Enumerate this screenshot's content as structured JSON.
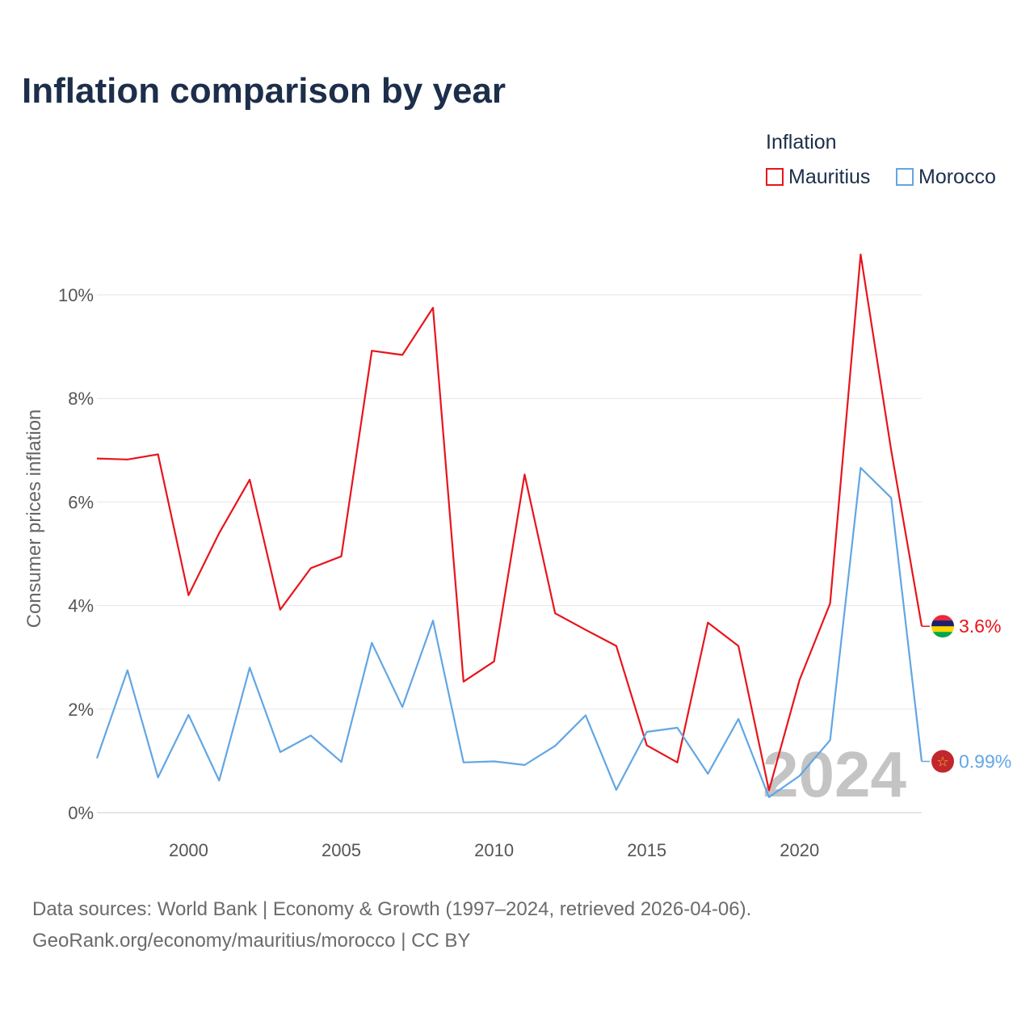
{
  "chart_data": {
    "type": "line",
    "title": "Inflation comparison by year",
    "xlabel": "",
    "ylabel": "Consumer prices inflation",
    "xlim": [
      1997,
      2024
    ],
    "ylim": [
      0,
      10.8
    ],
    "y_ticks": [
      0,
      2,
      4,
      6,
      8,
      10
    ],
    "y_tick_labels": [
      "0%",
      "2%",
      "4%",
      "6%",
      "8%",
      "10%"
    ],
    "x_ticks": [
      2000,
      2005,
      2010,
      2015,
      2020
    ],
    "x_tick_labels": [
      "2000",
      "2005",
      "2010",
      "2015",
      "2020"
    ],
    "grid": true,
    "legend_title": "Inflation",
    "legend_position": "top-right",
    "current_year_label": "2024",
    "x": [
      1997,
      1998,
      1999,
      2000,
      2001,
      2002,
      2003,
      2004,
      2005,
      2006,
      2007,
      2008,
      2009,
      2010,
      2011,
      2012,
      2013,
      2014,
      2015,
      2016,
      2017,
      2018,
      2019,
      2020,
      2021,
      2022,
      2023,
      2024
    ],
    "series": [
      {
        "name": "Mauritius",
        "color": "#e8141c",
        "end_label": "3.6%",
        "flag": "mauritius-flag",
        "values": [
          6.84,
          6.82,
          6.92,
          4.2,
          5.4,
          6.43,
          3.92,
          4.72,
          4.95,
          8.92,
          8.84,
          9.75,
          2.53,
          2.92,
          6.53,
          3.85,
          3.53,
          3.22,
          1.3,
          0.97,
          3.67,
          3.22,
          0.43,
          2.56,
          4.04,
          10.78,
          7.0,
          3.6
        ]
      },
      {
        "name": "Morocco",
        "color": "#62a6e4",
        "end_label": "0.99%",
        "flag": "morocco-flag",
        "values": [
          1.05,
          2.75,
          0.68,
          1.89,
          0.62,
          2.8,
          1.17,
          1.49,
          0.98,
          3.28,
          2.04,
          3.71,
          0.97,
          0.99,
          0.92,
          1.29,
          1.88,
          0.44,
          1.56,
          1.64,
          0.75,
          1.81,
          0.3,
          0.71,
          1.4,
          6.66,
          6.08,
          0.99
        ]
      }
    ]
  },
  "footer": {
    "sources_line": "Data sources: World Bank | Economy & Growth (1997–2024, retrieved 2026-04-06).",
    "credit_line": "GeoRank.org/economy/mauritius/morocco | CC BY"
  }
}
